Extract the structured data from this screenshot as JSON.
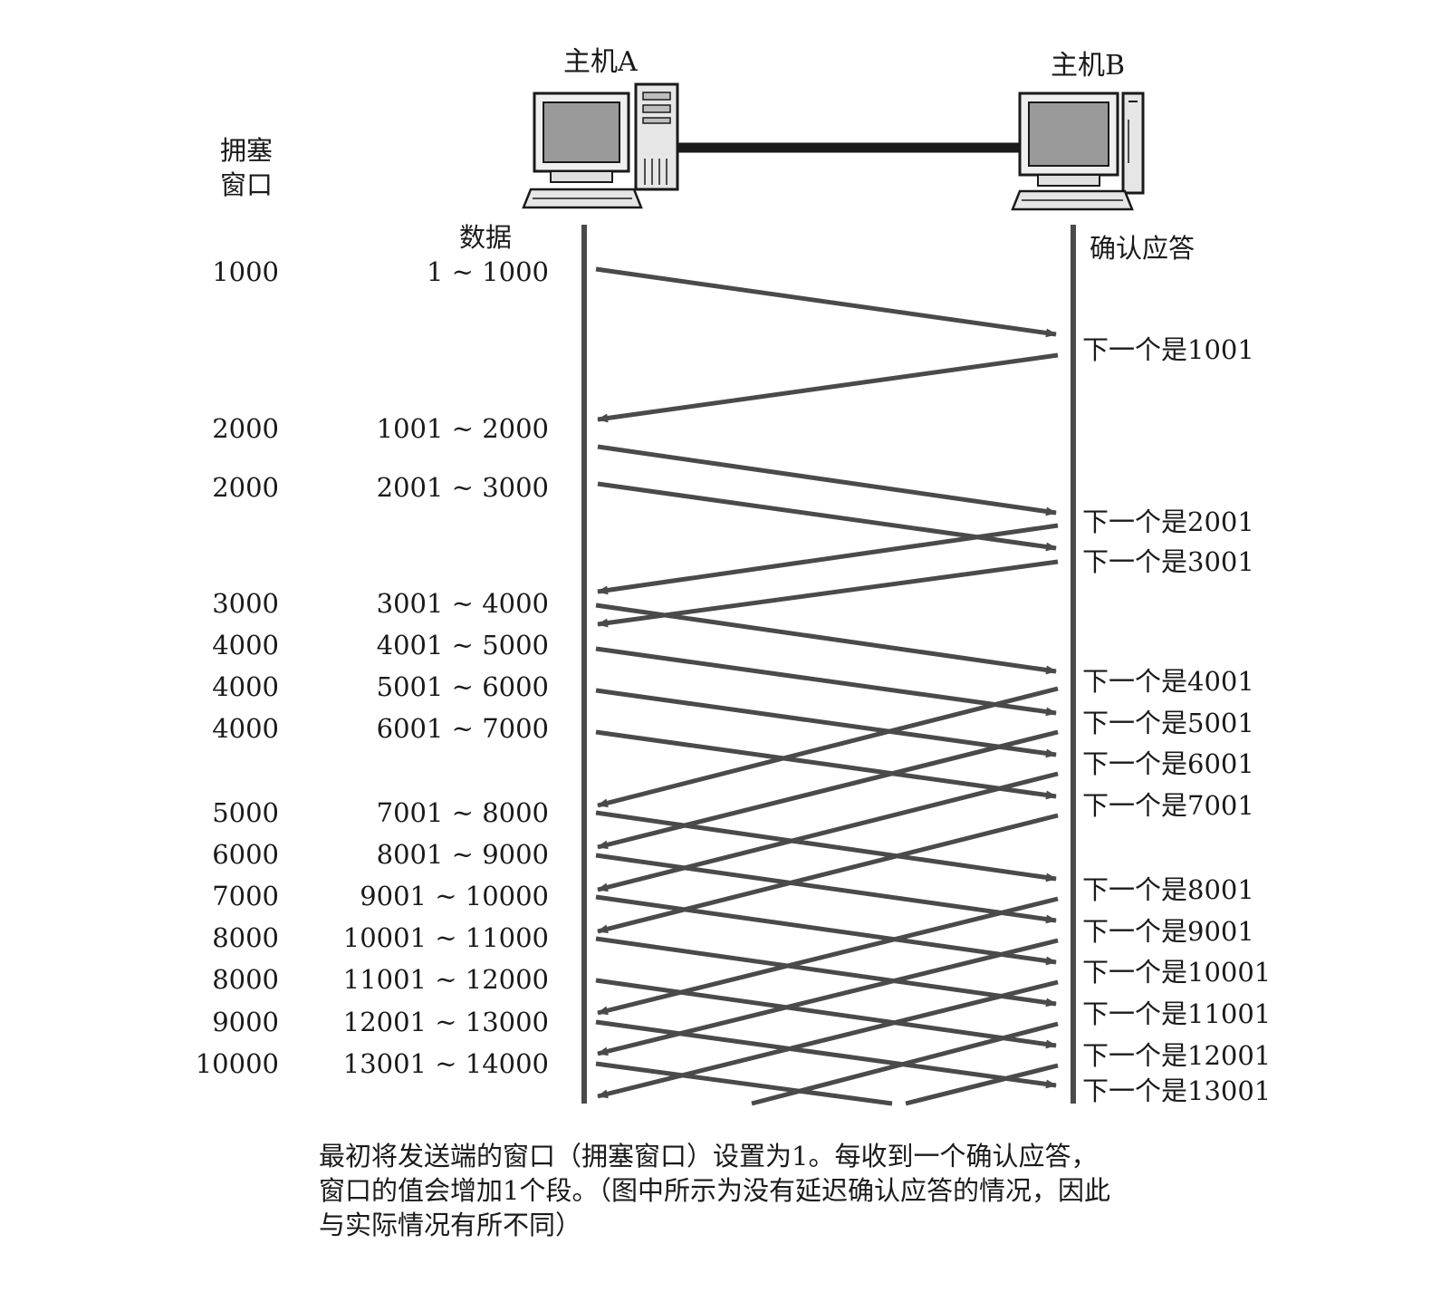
{
  "host_a": {
    "label": "主机A"
  },
  "host_b": {
    "label": "主机B"
  },
  "headers": {
    "cwnd": [
      "拥塞",
      "窗口"
    ],
    "data": "数据",
    "ack": "确认应答"
  },
  "segments": [
    {
      "cwnd": "1000",
      "range": "1 ~ 1000"
    },
    {
      "cwnd": "2000",
      "range": "1001 ~ 2000"
    },
    {
      "cwnd": "2000",
      "range": "2001 ~ 3000"
    },
    {
      "cwnd": "3000",
      "range": "3001 ~ 4000"
    },
    {
      "cwnd": "4000",
      "range": "4001 ~ 5000"
    },
    {
      "cwnd": "4000",
      "range": "5001 ~ 6000"
    },
    {
      "cwnd": "4000",
      "range": "6001 ~ 7000"
    },
    {
      "cwnd": "5000",
      "range": "7001 ~ 8000"
    },
    {
      "cwnd": "6000",
      "range": "8001 ~ 9000"
    },
    {
      "cwnd": "7000",
      "range": "9001 ~ 10000"
    },
    {
      "cwnd": "8000",
      "range": "10001 ~ 11000"
    },
    {
      "cwnd": "8000",
      "range": "11001 ~ 12000"
    },
    {
      "cwnd": "9000",
      "range": "12001 ~ 13000"
    },
    {
      "cwnd": "10000",
      "range": "13001 ~ 14000"
    }
  ],
  "acks": [
    "下一个是1001",
    "下一个是2001",
    "下一个是3001",
    "下一个是4001",
    "下一个是5001",
    "下一个是6001",
    "下一个是7001",
    "下一个是8001",
    "下一个是9001",
    "下一个是10001",
    "下一个是11001",
    "下一个是12001",
    "下一个是13001"
  ],
  "caption": [
    "最初将发送端的窗口（拥塞窗口）设置为1。每收到一个确认应答，",
    "窗口的值会增加1个段。（图中所示为没有延迟确认应答的情况，因此",
    "与实际情况有所不同）"
  ],
  "colors": {
    "line": "#4a4a4a",
    "cable": "#1a1a1a",
    "text": "#1a1a1a"
  }
}
